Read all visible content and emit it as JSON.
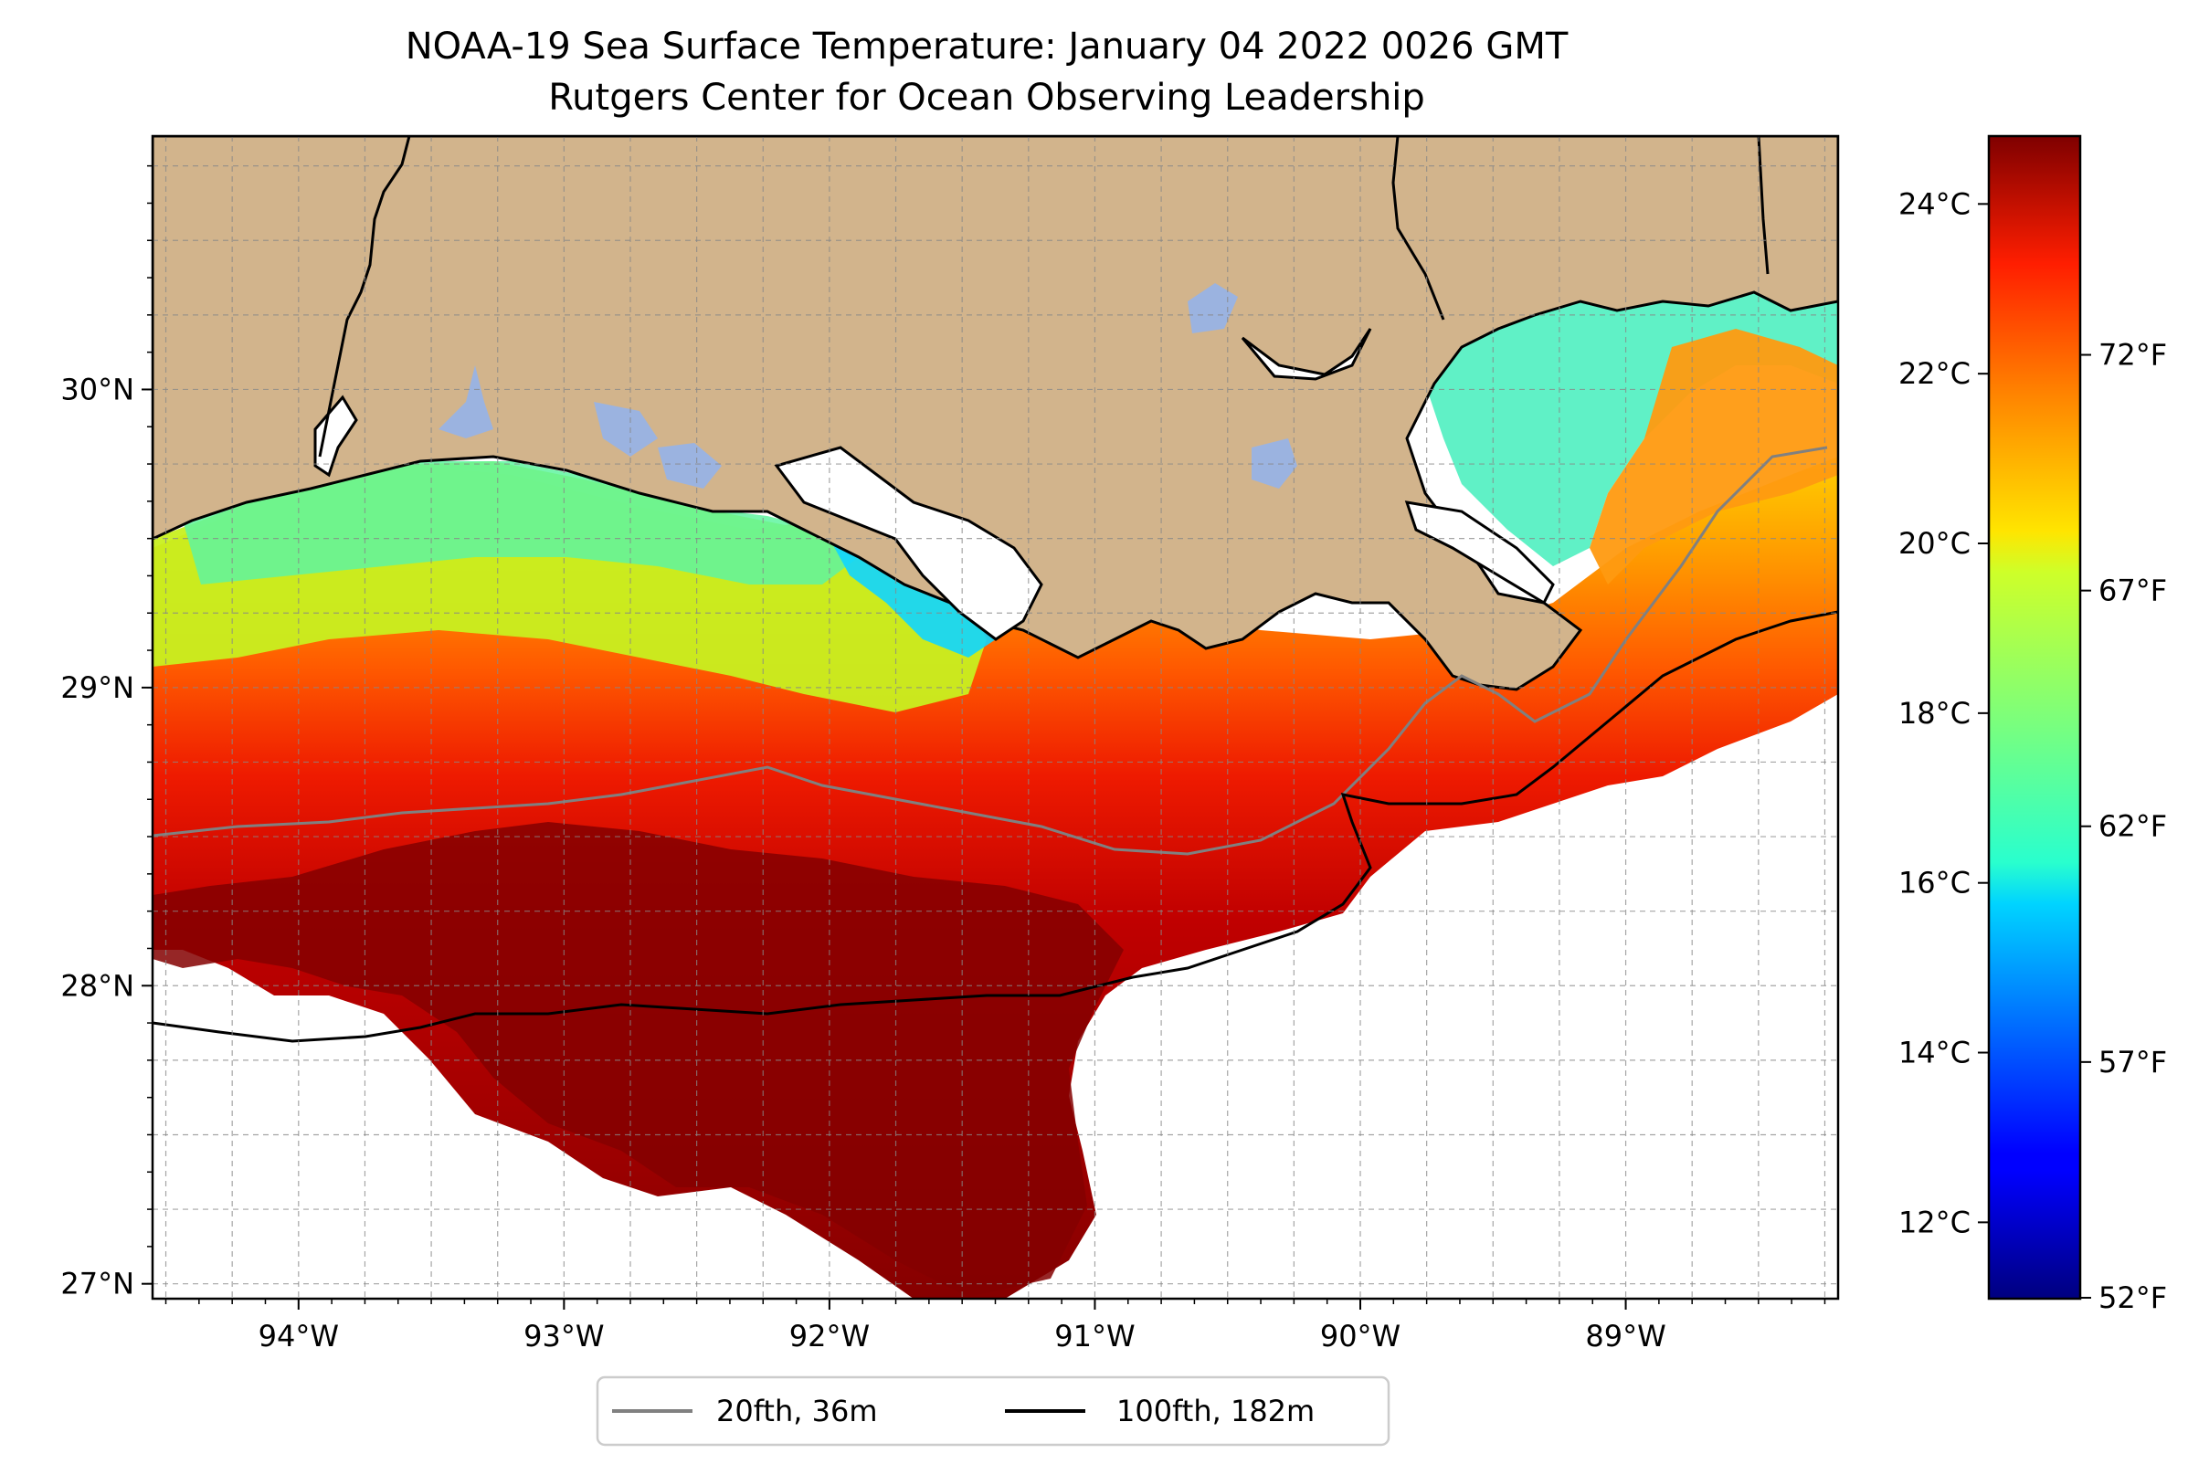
{
  "title": "NOAA-19 Sea Surface Temperature: January 04 2022 0026 GMT",
  "subtitle": "Rutgers Center for Ocean Observing Leadership",
  "map": {
    "lon_range": [
      -94.55,
      -88.2
    ],
    "lat_range": [
      26.95,
      30.85
    ],
    "lon_ticks": [
      {
        "value": -94,
        "label": "94°W"
      },
      {
        "value": -93,
        "label": "93°W"
      },
      {
        "value": -92,
        "label": "92°W"
      },
      {
        "value": -91,
        "label": "91°W"
      },
      {
        "value": -90,
        "label": "90°W"
      },
      {
        "value": -89,
        "label": "89°W"
      }
    ],
    "lat_ticks": [
      {
        "value": 27,
        "label": "27°N"
      },
      {
        "value": 28,
        "label": "28°N"
      },
      {
        "value": 29,
        "label": "29°N"
      },
      {
        "value": 30,
        "label": "30°N"
      }
    ],
    "gridlines": "dashed",
    "land_color": "#d2b48c",
    "water_body_color": "#9bb3e0",
    "no_data_color": "#ffffff"
  },
  "colorbar": {
    "colormap": "jet",
    "celsius_range": [
      11.1,
      24.8
    ],
    "celsius_ticks": [
      {
        "value": 12,
        "label": "12°C"
      },
      {
        "value": 14,
        "label": "14°C"
      },
      {
        "value": 16,
        "label": "16°C"
      },
      {
        "value": 18,
        "label": "18°C"
      },
      {
        "value": 20,
        "label": "20°C"
      },
      {
        "value": 22,
        "label": "22°C"
      },
      {
        "value": 24,
        "label": "24°C"
      }
    ],
    "fahrenheit_ticks": [
      {
        "value": 52,
        "label": "52°F"
      },
      {
        "value": 57,
        "label": "57°F"
      },
      {
        "value": 62,
        "label": "62°F"
      },
      {
        "value": 67,
        "label": "67°F"
      },
      {
        "value": 72,
        "label": "72°F"
      }
    ]
  },
  "legend": {
    "placement": "bottom-center",
    "entries": [
      {
        "label": "20fth, 36m",
        "color": "#808080"
      },
      {
        "label": "100fth, 182m",
        "color": "#000000"
      }
    ]
  }
}
